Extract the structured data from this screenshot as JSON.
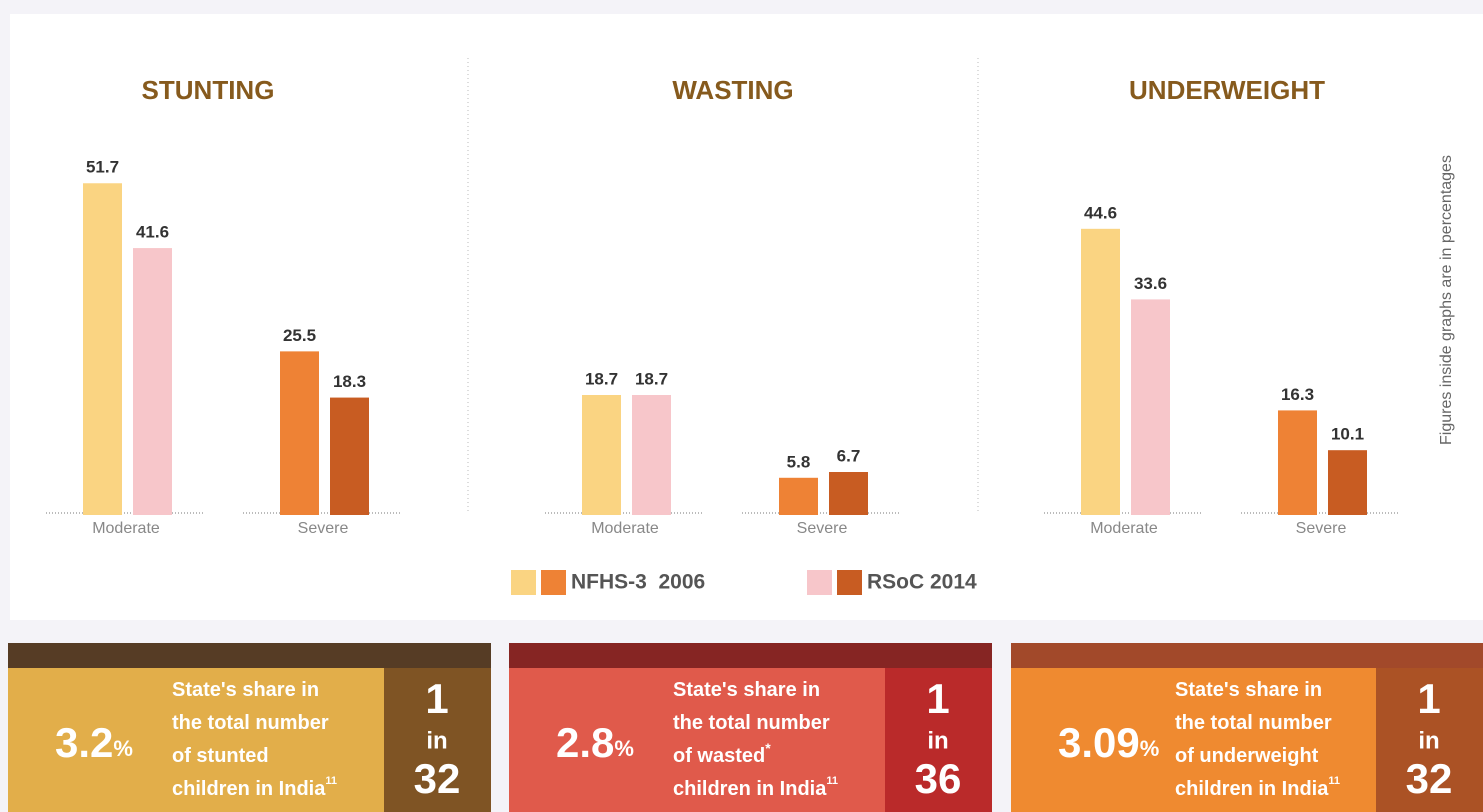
{
  "chart_data": [
    {
      "type": "bar",
      "title": "STUNTING",
      "categories": [
        "Moderate",
        "Severe"
      ],
      "ylim": [
        0,
        60
      ],
      "series": [
        {
          "values": [
            51.7,
            25.5
          ]
        },
        {
          "values": [
            41.6,
            18.3
          ]
        }
      ]
    },
    {
      "type": "bar",
      "title": "WASTING",
      "categories": [
        "Moderate",
        "Severe"
      ],
      "ylim": [
        0,
        60
      ],
      "series": [
        {
          "values": [
            18.7,
            5.8
          ]
        },
        {
          "values": [
            18.7,
            6.7
          ]
        }
      ]
    },
    {
      "type": "bar",
      "title": "UNDERWEIGHT",
      "categories": [
        "Moderate",
        "Severe"
      ],
      "ylim": [
        0,
        60
      ],
      "series": [
        {
          "values": [
            44.6,
            16.3
          ]
        },
        {
          "values": [
            33.6,
            10.1
          ]
        }
      ]
    }
  ],
  "legend": {
    "entries": [
      {
        "name": "NFHS-3  2006",
        "colors": [
          "#fad482",
          "#ee8235"
        ]
      },
      {
        "name": "RSoC 2014",
        "colors": [
          "#f7c6ca",
          "#c85c22"
        ]
      }
    ]
  },
  "side_note": "Figures inside graphs are in percentages",
  "cards": [
    {
      "value": 3.2,
      "unit": "%",
      "lines": [
        "State's share in",
        "the total number",
        "of stunted",
        "children in India"
      ],
      "footnote": "11",
      "ratio": {
        "top": 1,
        "mid": "in",
        "bottom": 32
      }
    },
    {
      "value": 2.8,
      "unit": "%",
      "lines": [
        "State's share in",
        "the total number",
        "of wasted",
        "children in India"
      ],
      "mark": "*",
      "footnote": "11",
      "ratio": {
        "top": 1,
        "mid": "in",
        "bottom": 36
      }
    },
    {
      "value": 3.09,
      "unit": "%",
      "lines": [
        "State's share in",
        "the total number",
        "of underweight",
        "children in India"
      ],
      "footnote": "11",
      "ratio": {
        "top": 1,
        "mid": "in",
        "bottom": 32
      }
    }
  ]
}
